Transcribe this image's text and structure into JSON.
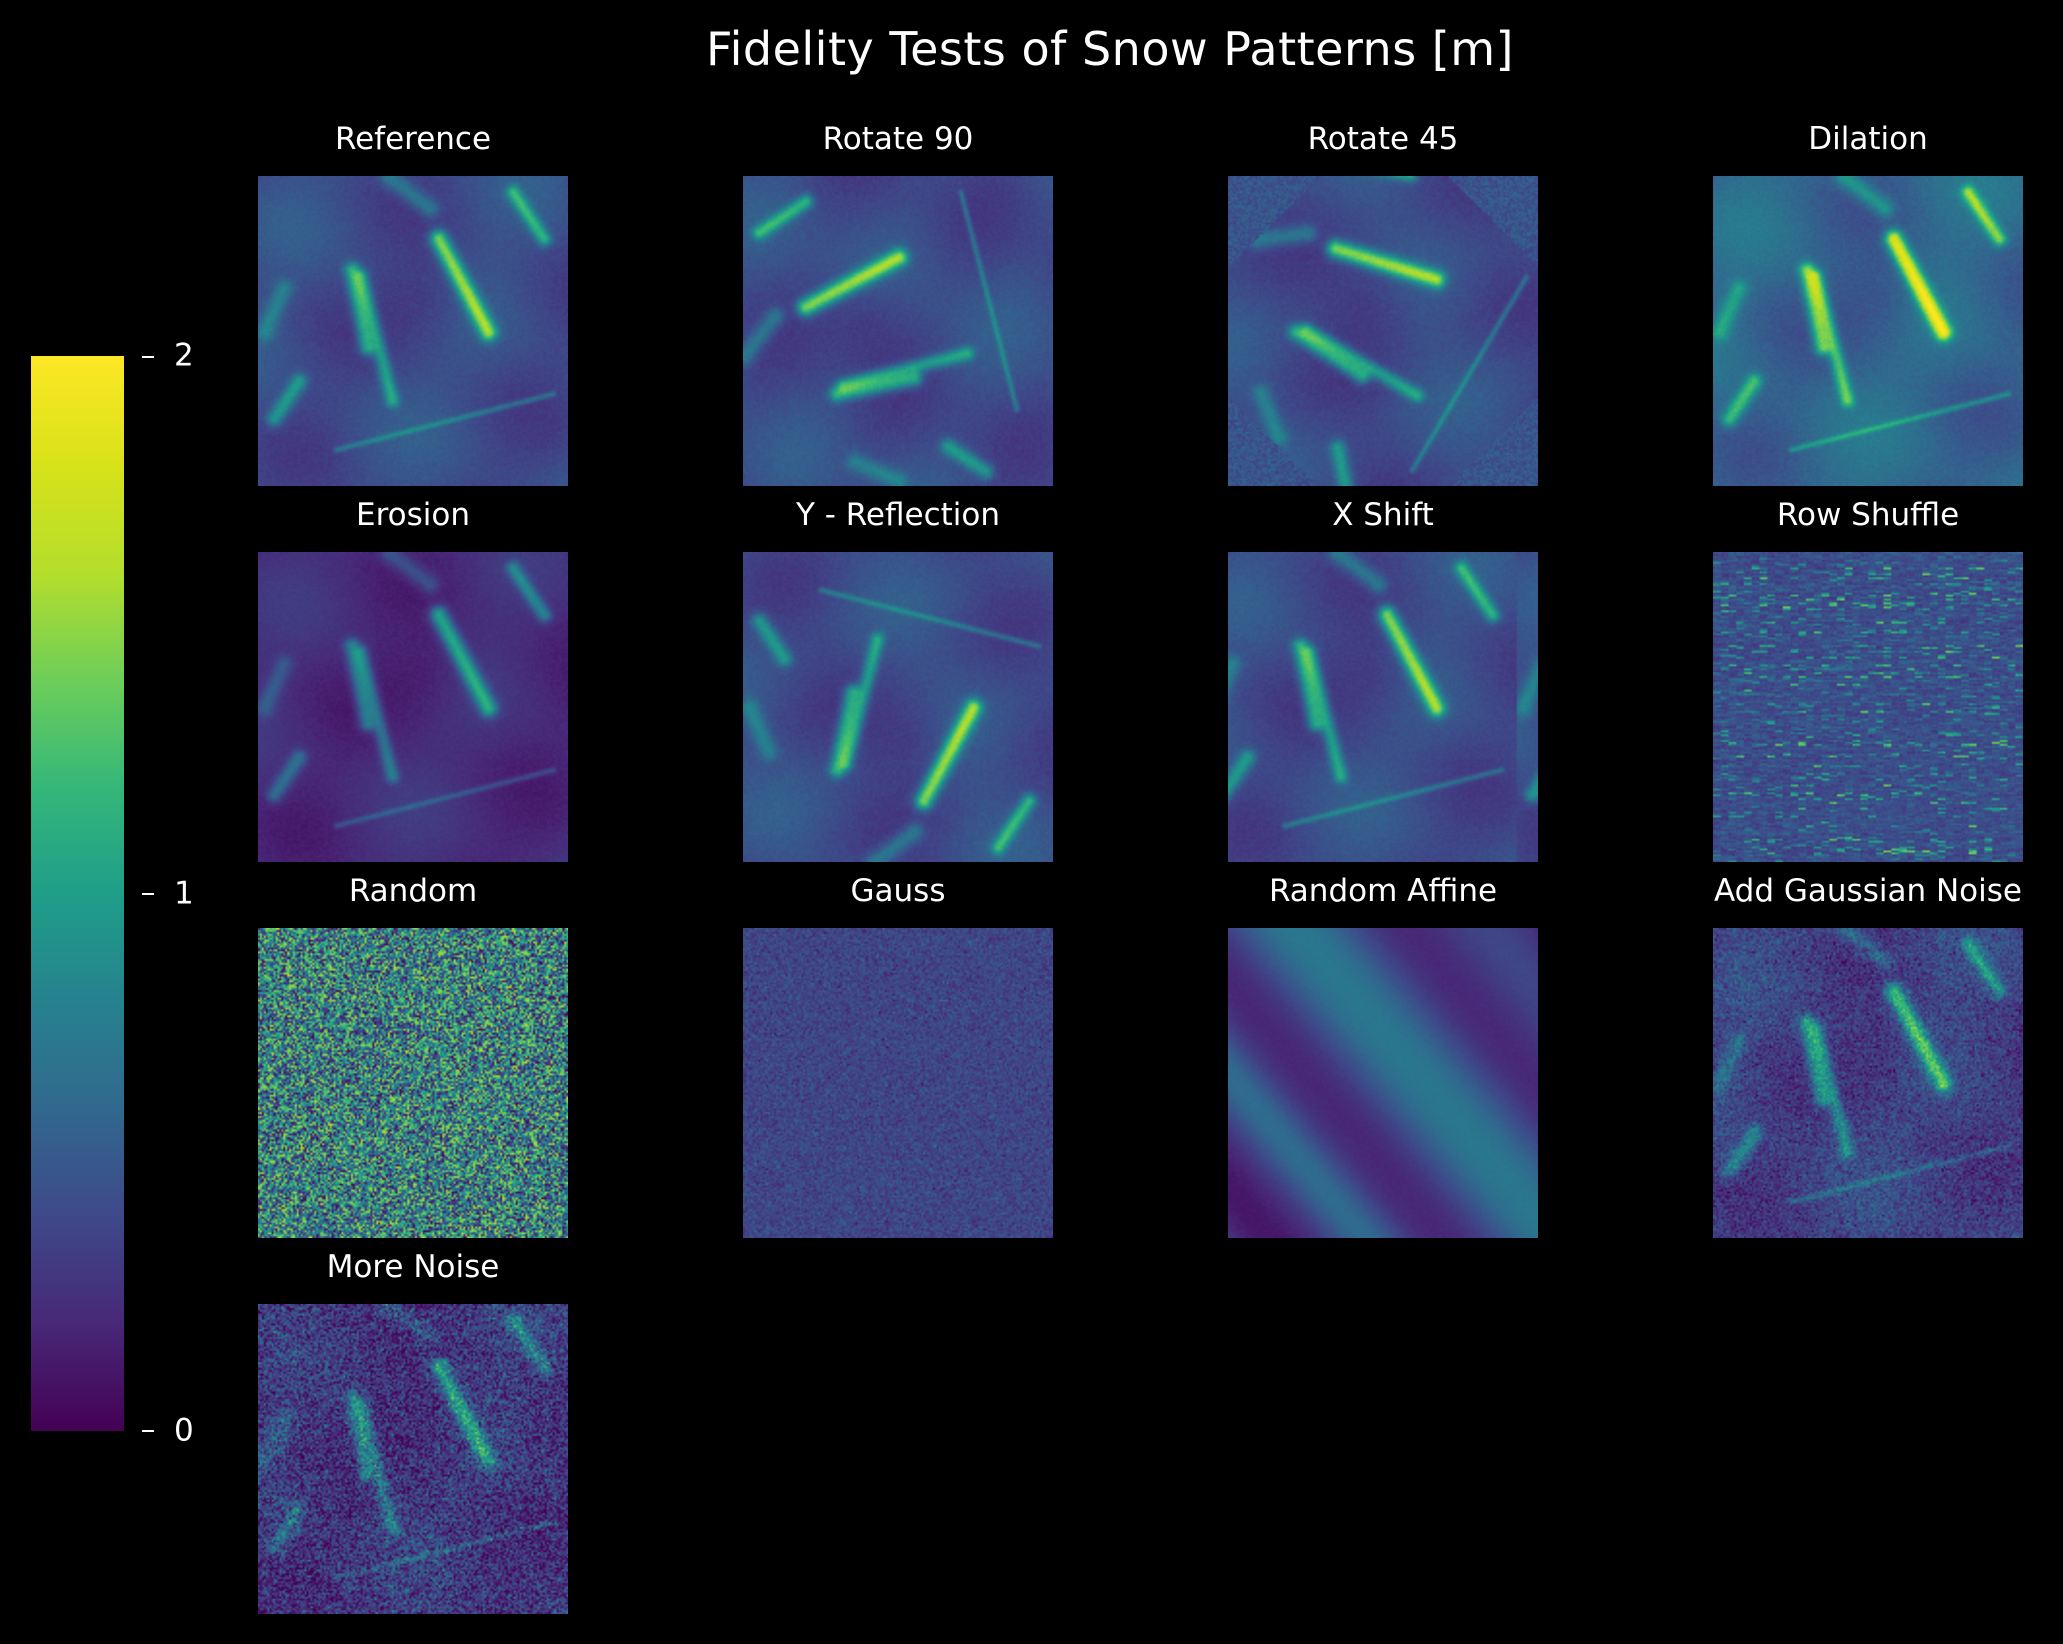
{
  "chart_data": {
    "type": "heatmap",
    "title": "Fidelity Tests of Snow Patterns [m]",
    "colormap": "viridis",
    "colorbar": {
      "min": 0,
      "max": 2,
      "ticks": [
        0,
        1,
        2
      ],
      "tick_labels": [
        "0",
        "1",
        "2"
      ]
    },
    "grid": {
      "rows": 4,
      "cols": 4
    },
    "panels": [
      {
        "title": "Reference",
        "pattern": "reference"
      },
      {
        "title": "Rotate 90",
        "pattern": "rotate90"
      },
      {
        "title": "Rotate 45",
        "pattern": "rotate45"
      },
      {
        "title": "Dilation",
        "pattern": "dilation"
      },
      {
        "title": "Erosion",
        "pattern": "erosion"
      },
      {
        "title": "Y - Reflection",
        "pattern": "yreflect"
      },
      {
        "title": "X Shift",
        "pattern": "xshift"
      },
      {
        "title": "Row Shuffle",
        "pattern": "rowshuffle"
      },
      {
        "title": "Random",
        "pattern": "random"
      },
      {
        "title": "Gauss",
        "pattern": "gauss"
      },
      {
        "title": "Random Affine",
        "pattern": "affine"
      },
      {
        "title": "Add Gaussian Noise",
        "pattern": "noise"
      },
      {
        "title": "More Noise",
        "pattern": "morenoise"
      }
    ]
  }
}
